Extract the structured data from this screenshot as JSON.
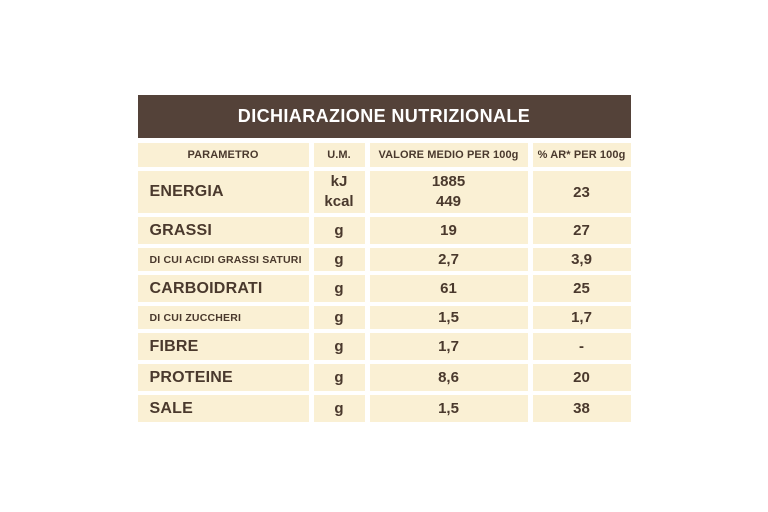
{
  "title": "DICHIARAZIONE NUTRIZIONALE",
  "header": {
    "parameter": "PARAMETRO",
    "unit": "U.M.",
    "value": "VALORE MEDIO PER 100g",
    "ar": "% AR* PER 100g"
  },
  "rows": [
    {
      "parameter": "ENERGIA",
      "unit_lines": [
        "kJ",
        "kcal"
      ],
      "value_lines": [
        "1885",
        "449"
      ],
      "ar": "23"
    },
    {
      "parameter": "GRASSI",
      "unit": "g",
      "value": "19",
      "ar": "27"
    },
    {
      "parameter": "DI CUI ACIDI GRASSI SATURI",
      "unit": "g",
      "value": "2,7",
      "ar": "3,9"
    },
    {
      "parameter": "CARBOIDRATI",
      "unit": "g",
      "value": "61",
      "ar": "25"
    },
    {
      "parameter": "DI CUI ZUCCHERI",
      "unit": "g",
      "value": "1,5",
      "ar": "1,7"
    },
    {
      "parameter": "FIBRE",
      "unit": "g",
      "value": "1,7",
      "ar": "-"
    },
    {
      "parameter": "PROTEINE",
      "unit": "g",
      "value": "8,6",
      "ar": "20"
    },
    {
      "parameter": "SALE",
      "unit": "g",
      "value": "1,5",
      "ar": "38"
    }
  ],
  "colors": {
    "title_bg": "#544239",
    "title_text": "#ffffff",
    "cell_bg": "#faf0d4",
    "text": "#4a392d",
    "page_bg": "#ffffff"
  }
}
